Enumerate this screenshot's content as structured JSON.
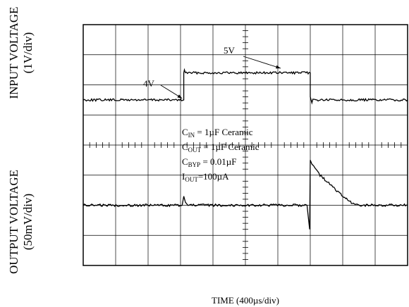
{
  "chart_data": {
    "type": "line",
    "grid": true,
    "divisions": {
      "x": 10,
      "y": 8
    },
    "xlabel": "TIME (400µs/div)",
    "x_unit_per_div": "400µs",
    "series": [
      {
        "name": "INPUT VOLTAGE",
        "axis_label": [
          "INPUT VOLTAGE",
          "(1V/div)"
        ],
        "units_per_div": "1V",
        "x_div": [
          0,
          3.1,
          3.1,
          3.12,
          3.15,
          7.0,
          7.0,
          7.05,
          7.08,
          10
        ],
        "y_div": [
          5.5,
          5.5,
          6.4,
          6.5,
          6.4,
          6.4,
          5.6,
          5.4,
          5.5,
          5.5
        ]
      },
      {
        "name": "OUTPUT VOLTAGE",
        "axis_label": [
          "OUTPUT VOLTAGE",
          "(50mV/div)"
        ],
        "units_per_div": "50mV",
        "x_div": [
          0,
          3.05,
          3.1,
          3.15,
          3.2,
          6.9,
          6.95,
          6.98,
          7.0,
          7.05,
          7.3,
          7.6,
          8.0,
          8.3,
          8.5,
          10
        ],
        "y_div": [
          2.0,
          2.0,
          2.3,
          2.1,
          2.0,
          2.0,
          1.5,
          1.2,
          3.5,
          3.4,
          3.0,
          2.7,
          2.3,
          2.05,
          2.0,
          2.0
        ]
      }
    ],
    "callouts": [
      {
        "text": "4V",
        "x_div": 3.05,
        "y_div": 5.55
      },
      {
        "text": "5V",
        "x_div": 5.5,
        "y_div": 6.55
      }
    ]
  },
  "conditions": {
    "cin": {
      "sym": "C",
      "sub": "IN",
      "rest": " = 1µF Ceramic"
    },
    "cout": {
      "sym": "C",
      "sub": "OUT",
      "rest": " = 1µF Ceramic"
    },
    "cbyp": {
      "sym": "C",
      "sub": "BYP",
      "rest": " = 0.01µF"
    },
    "iout": {
      "sym": "I",
      "sub": "OUT",
      "rest": "=100µA"
    }
  }
}
